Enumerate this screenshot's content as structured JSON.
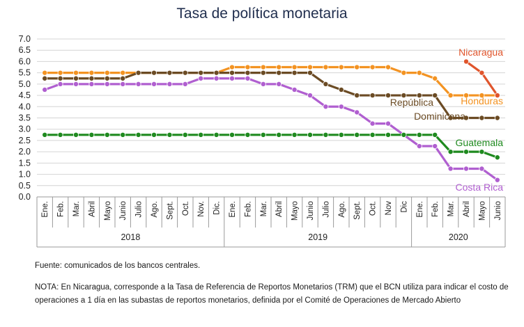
{
  "chart_data": {
    "type": "line",
    "title": "Tasa de política monetaria",
    "categories": [
      "Ene.",
      "Feb.",
      "Mar.",
      "Abril",
      "Mayo",
      "Junio",
      "Julio",
      "Ago.",
      "Sept.",
      "Oct.",
      "Nov.",
      "Dic.",
      "Ene.",
      "Feb.",
      "Mar.",
      "Abril",
      "Mayo",
      "Junio",
      "Julio",
      "Ago.",
      "Sept.",
      "Oct.",
      "Nov",
      "Dic",
      "Ene.",
      "Feb.",
      "Mar.",
      "Abril",
      "Mayo",
      "Junio"
    ],
    "years": [
      {
        "label": "2018",
        "start": 0,
        "end": 11
      },
      {
        "label": "2019",
        "start": 12,
        "end": 23
      },
      {
        "label": "2020",
        "start": 24,
        "end": 29
      }
    ],
    "ylim": [
      0,
      7
    ],
    "yticks": [
      "0.0",
      "0.5",
      "1.0",
      "1.5",
      "2.0",
      "2.5",
      "3.0",
      "3.5",
      "4.0",
      "4.5",
      "5.0",
      "5.5",
      "6.0",
      "6.5",
      "7.0"
    ],
    "grid": true,
    "series": [
      {
        "name": "Honduras",
        "color": "#f39322",
        "values": [
          5.5,
          5.5,
          5.5,
          5.5,
          5.5,
          5.5,
          5.5,
          5.5,
          5.5,
          5.5,
          5.5,
          5.5,
          5.75,
          5.75,
          5.75,
          5.75,
          5.75,
          5.75,
          5.75,
          5.75,
          5.75,
          5.75,
          5.75,
          5.5,
          5.5,
          5.25,
          4.5,
          4.5,
          4.5,
          4.5
        ]
      },
      {
        "name": "República Dominicana",
        "name_lines": [
          "República",
          "Dominicana"
        ],
        "color": "#6b4b24",
        "values": [
          5.25,
          5.25,
          5.25,
          5.25,
          5.25,
          5.25,
          5.5,
          5.5,
          5.5,
          5.5,
          5.5,
          5.5,
          5.5,
          5.5,
          5.5,
          5.5,
          5.5,
          5.5,
          5.0,
          4.75,
          4.5,
          4.5,
          4.5,
          4.5,
          4.5,
          4.5,
          3.5,
          3.5,
          3.5,
          3.5
        ]
      },
      {
        "name": "Costa Rica",
        "color": "#b05fd0",
        "values": [
          4.75,
          5.0,
          5.0,
          5.0,
          5.0,
          5.0,
          5.0,
          5.0,
          5.0,
          5.0,
          5.25,
          5.25,
          5.25,
          5.25,
          5.0,
          5.0,
          4.75,
          4.5,
          4.0,
          4.0,
          3.75,
          3.25,
          3.25,
          2.75,
          2.25,
          2.25,
          1.25,
          1.25,
          1.25,
          0.75
        ]
      },
      {
        "name": "Guatemala",
        "color": "#1f8a1f",
        "values": [
          2.75,
          2.75,
          2.75,
          2.75,
          2.75,
          2.75,
          2.75,
          2.75,
          2.75,
          2.75,
          2.75,
          2.75,
          2.75,
          2.75,
          2.75,
          2.75,
          2.75,
          2.75,
          2.75,
          2.75,
          2.75,
          2.75,
          2.75,
          2.75,
          2.75,
          2.75,
          2.0,
          2.0,
          2.0,
          1.75
        ]
      },
      {
        "name": "Nicaragua",
        "color": "#e0552c",
        "values": [
          null,
          null,
          null,
          null,
          null,
          null,
          null,
          null,
          null,
          null,
          null,
          null,
          null,
          null,
          null,
          null,
          null,
          null,
          null,
          null,
          null,
          null,
          null,
          null,
          null,
          null,
          null,
          6.0,
          5.5,
          4.5
        ]
      }
    ]
  },
  "footer": {
    "source": "Fuente: comunicados de los bancos centrales.",
    "note": "NOTA: En Nicaragua, corresponde a la Tasa de Referencia de Reportos Monetarios (TRM) que el BCN utiliza para indicar el costo de operaciones a 1 día en las subastas de reportos monetarios, definida por el Comité de Operaciones de Mercado Abierto"
  }
}
